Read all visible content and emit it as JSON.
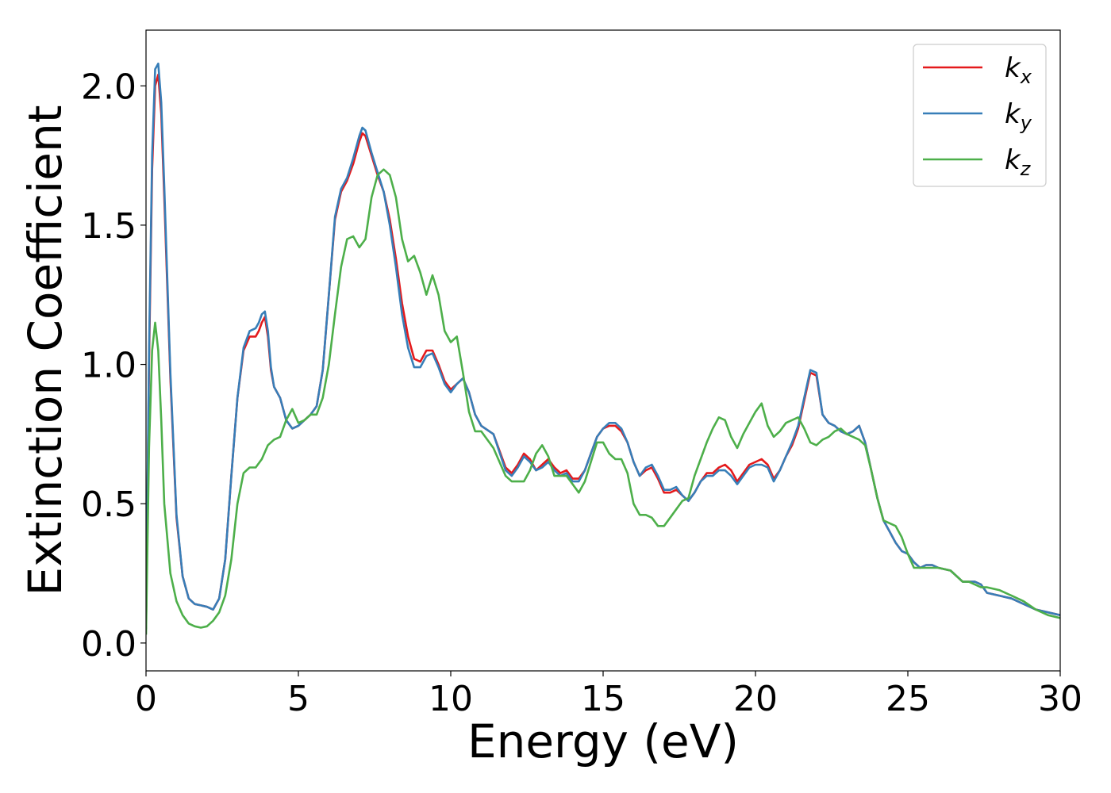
{
  "chart_data": {
    "type": "line",
    "title": "",
    "xlabel": "Energy (eV)",
    "ylabel": "Extinction Coefficient",
    "xlim": [
      0,
      30
    ],
    "ylim": [
      -0.1,
      2.2
    ],
    "xticks": [
      0,
      5,
      10,
      15,
      20,
      25,
      30
    ],
    "xtick_labels": [
      "0",
      "5",
      "10",
      "15",
      "20",
      "25",
      "30"
    ],
    "yticks": [
      0.0,
      0.5,
      1.0,
      1.5,
      2.0
    ],
    "ytick_labels": [
      "0.0",
      "0.5",
      "1.0",
      "1.5",
      "2.0"
    ],
    "grid": false,
    "legend_position": "top-right",
    "series": [
      {
        "name": "k_x",
        "legend_base": "k",
        "legend_sub": "x",
        "color": "#e41a1c",
        "x": [
          0,
          0.1,
          0.2,
          0.3,
          0.4,
          0.5,
          0.6,
          0.8,
          1.0,
          1.2,
          1.4,
          1.6,
          1.8,
          2.0,
          2.2,
          2.4,
          2.6,
          2.8,
          3.0,
          3.2,
          3.4,
          3.6,
          3.7,
          3.8,
          3.9,
          4.0,
          4.1,
          4.2,
          4.4,
          4.6,
          4.8,
          5.0,
          5.2,
          5.4,
          5.6,
          5.8,
          6.0,
          6.2,
          6.4,
          6.6,
          6.8,
          7.0,
          7.1,
          7.2,
          7.4,
          7.6,
          7.8,
          8.0,
          8.2,
          8.4,
          8.6,
          8.8,
          9.0,
          9.2,
          9.4,
          9.6,
          9.8,
          10.0,
          10.2,
          10.4,
          10.6,
          10.8,
          11.0,
          11.4,
          11.8,
          12.0,
          12.2,
          12.4,
          12.6,
          12.8,
          13.0,
          13.2,
          13.4,
          13.6,
          13.8,
          14.0,
          14.2,
          14.4,
          14.6,
          14.8,
          15.0,
          15.2,
          15.4,
          15.6,
          15.8,
          16.0,
          16.2,
          16.4,
          16.6,
          16.8,
          17.0,
          17.2,
          17.4,
          17.6,
          17.8,
          18.0,
          18.2,
          18.4,
          18.6,
          18.8,
          19.0,
          19.2,
          19.4,
          19.6,
          19.8,
          20.0,
          20.2,
          20.4,
          20.6,
          20.8,
          21.0,
          21.2,
          21.4,
          21.6,
          21.8,
          22.0,
          22.2,
          22.4,
          22.6,
          22.8,
          23.0,
          23.2,
          23.4,
          23.6,
          23.8,
          24.0,
          24.2,
          24.4,
          24.6,
          24.8,
          25.0,
          25.2,
          25.4,
          25.6,
          25.8,
          26.0,
          26.4,
          26.8,
          27.0,
          27.2,
          27.4,
          27.6,
          28.0,
          28.4,
          28.8,
          29.2,
          29.6,
          30.0
        ],
        "y": [
          0.05,
          1.0,
          1.7,
          2.0,
          2.04,
          1.9,
          1.6,
          0.95,
          0.45,
          0.24,
          0.16,
          0.14,
          0.135,
          0.13,
          0.12,
          0.16,
          0.3,
          0.6,
          0.88,
          1.05,
          1.1,
          1.1,
          1.12,
          1.15,
          1.17,
          1.1,
          0.98,
          0.92,
          0.88,
          0.8,
          0.77,
          0.78,
          0.8,
          0.82,
          0.85,
          0.98,
          1.25,
          1.52,
          1.62,
          1.66,
          1.72,
          1.8,
          1.83,
          1.82,
          1.75,
          1.68,
          1.62,
          1.52,
          1.38,
          1.22,
          1.1,
          1.02,
          1.01,
          1.05,
          1.05,
          1.0,
          0.94,
          0.91,
          0.93,
          0.95,
          0.9,
          0.82,
          0.78,
          0.75,
          0.63,
          0.61,
          0.64,
          0.68,
          0.66,
          0.62,
          0.64,
          0.66,
          0.63,
          0.61,
          0.62,
          0.59,
          0.59,
          0.62,
          0.68,
          0.74,
          0.77,
          0.78,
          0.78,
          0.76,
          0.72,
          0.65,
          0.6,
          0.62,
          0.63,
          0.59,
          0.54,
          0.54,
          0.55,
          0.53,
          0.51,
          0.54,
          0.58,
          0.61,
          0.61,
          0.63,
          0.64,
          0.62,
          0.58,
          0.61,
          0.64,
          0.65,
          0.66,
          0.64,
          0.59,
          0.62,
          0.67,
          0.71,
          0.77,
          0.87,
          0.97,
          0.96,
          0.82,
          0.79,
          0.78,
          0.76,
          0.75,
          0.76,
          0.78,
          0.72,
          0.62,
          0.52,
          0.44,
          0.4,
          0.36,
          0.33,
          0.32,
          0.29,
          0.27,
          0.28,
          0.28,
          0.27,
          0.26,
          0.22,
          0.22,
          0.22,
          0.21,
          0.18,
          0.17,
          0.16,
          0.14,
          0.12,
          0.11,
          0.1
        ]
      },
      {
        "name": "k_y",
        "legend_base": "k",
        "legend_sub": "y",
        "color": "#377eb8",
        "x": [
          0,
          0.1,
          0.2,
          0.3,
          0.4,
          0.5,
          0.6,
          0.8,
          1.0,
          1.2,
          1.4,
          1.6,
          1.8,
          2.0,
          2.2,
          2.4,
          2.6,
          2.8,
          3.0,
          3.2,
          3.4,
          3.6,
          3.7,
          3.8,
          3.9,
          4.0,
          4.1,
          4.2,
          4.4,
          4.6,
          4.8,
          5.0,
          5.2,
          5.4,
          5.6,
          5.8,
          6.0,
          6.2,
          6.4,
          6.6,
          6.8,
          7.0,
          7.1,
          7.2,
          7.4,
          7.6,
          7.8,
          8.0,
          8.2,
          8.4,
          8.6,
          8.8,
          9.0,
          9.2,
          9.4,
          9.6,
          9.8,
          10.0,
          10.2,
          10.4,
          10.6,
          10.8,
          11.0,
          11.4,
          11.8,
          12.0,
          12.2,
          12.4,
          12.6,
          12.8,
          13.0,
          13.2,
          13.4,
          13.6,
          13.8,
          14.0,
          14.2,
          14.4,
          14.6,
          14.8,
          15.0,
          15.2,
          15.4,
          15.6,
          15.8,
          16.0,
          16.2,
          16.4,
          16.6,
          16.8,
          17.0,
          17.2,
          17.4,
          17.6,
          17.8,
          18.0,
          18.2,
          18.4,
          18.6,
          18.8,
          19.0,
          19.2,
          19.4,
          19.6,
          19.8,
          20.0,
          20.2,
          20.4,
          20.6,
          20.8,
          21.0,
          21.2,
          21.4,
          21.6,
          21.8,
          22.0,
          22.2,
          22.4,
          22.6,
          22.8,
          23.0,
          23.2,
          23.4,
          23.6,
          23.8,
          24.0,
          24.2,
          24.4,
          24.6,
          24.8,
          25.0,
          25.2,
          25.4,
          25.6,
          25.8,
          26.0,
          26.4,
          26.8,
          27.0,
          27.2,
          27.4,
          27.6,
          28.0,
          28.4,
          28.8,
          29.2,
          29.6,
          30.0
        ],
        "y": [
          0.05,
          1.05,
          1.75,
          2.06,
          2.08,
          1.94,
          1.64,
          0.97,
          0.46,
          0.24,
          0.16,
          0.14,
          0.135,
          0.13,
          0.12,
          0.16,
          0.3,
          0.6,
          0.88,
          1.06,
          1.12,
          1.13,
          1.15,
          1.18,
          1.19,
          1.12,
          0.99,
          0.92,
          0.88,
          0.8,
          0.77,
          0.78,
          0.8,
          0.82,
          0.85,
          0.98,
          1.25,
          1.53,
          1.63,
          1.67,
          1.74,
          1.82,
          1.85,
          1.84,
          1.76,
          1.69,
          1.62,
          1.5,
          1.35,
          1.18,
          1.06,
          0.99,
          0.99,
          1.03,
          1.04,
          0.99,
          0.93,
          0.9,
          0.93,
          0.95,
          0.9,
          0.82,
          0.78,
          0.75,
          0.62,
          0.6,
          0.63,
          0.67,
          0.65,
          0.62,
          0.63,
          0.65,
          0.62,
          0.6,
          0.61,
          0.58,
          0.58,
          0.62,
          0.68,
          0.74,
          0.77,
          0.79,
          0.79,
          0.77,
          0.72,
          0.65,
          0.6,
          0.63,
          0.64,
          0.6,
          0.55,
          0.55,
          0.56,
          0.53,
          0.51,
          0.54,
          0.58,
          0.6,
          0.6,
          0.62,
          0.62,
          0.6,
          0.57,
          0.6,
          0.63,
          0.64,
          0.64,
          0.63,
          0.58,
          0.62,
          0.67,
          0.72,
          0.78,
          0.88,
          0.98,
          0.97,
          0.82,
          0.79,
          0.78,
          0.76,
          0.75,
          0.76,
          0.78,
          0.72,
          0.62,
          0.52,
          0.44,
          0.4,
          0.36,
          0.33,
          0.32,
          0.29,
          0.27,
          0.28,
          0.28,
          0.27,
          0.26,
          0.22,
          0.22,
          0.22,
          0.21,
          0.18,
          0.17,
          0.16,
          0.14,
          0.12,
          0.11,
          0.1
        ]
      },
      {
        "name": "k_z",
        "legend_base": "k",
        "legend_sub": "z",
        "color": "#4daf4a",
        "x": [
          0,
          0.1,
          0.2,
          0.3,
          0.4,
          0.5,
          0.6,
          0.8,
          1.0,
          1.2,
          1.4,
          1.6,
          1.8,
          2.0,
          2.2,
          2.4,
          2.6,
          2.8,
          3.0,
          3.2,
          3.4,
          3.6,
          3.8,
          4.0,
          4.2,
          4.4,
          4.6,
          4.8,
          5.0,
          5.2,
          5.4,
          5.6,
          5.8,
          6.0,
          6.2,
          6.4,
          6.6,
          6.8,
          7.0,
          7.2,
          7.4,
          7.6,
          7.8,
          8.0,
          8.2,
          8.4,
          8.6,
          8.8,
          9.0,
          9.2,
          9.4,
          9.6,
          9.8,
          10.0,
          10.2,
          10.4,
          10.6,
          10.8,
          11.0,
          11.4,
          11.8,
          12.0,
          12.2,
          12.4,
          12.6,
          12.8,
          13.0,
          13.2,
          13.4,
          13.6,
          13.8,
          14.0,
          14.2,
          14.4,
          14.6,
          14.8,
          15.0,
          15.2,
          15.4,
          15.6,
          15.8,
          16.0,
          16.2,
          16.4,
          16.6,
          16.8,
          17.0,
          17.2,
          17.4,
          17.6,
          17.8,
          18.0,
          18.2,
          18.4,
          18.6,
          18.8,
          19.0,
          19.2,
          19.4,
          19.6,
          19.8,
          20.0,
          20.2,
          20.4,
          20.6,
          20.8,
          21.0,
          21.2,
          21.4,
          21.6,
          21.8,
          22.0,
          22.2,
          22.4,
          22.6,
          22.8,
          23.0,
          23.2,
          23.4,
          23.6,
          23.8,
          24.0,
          24.2,
          24.4,
          24.6,
          24.8,
          25.0,
          25.2,
          25.4,
          25.6,
          25.8,
          26.0,
          26.4,
          26.8,
          27.0,
          27.2,
          27.4,
          27.6,
          28.0,
          28.4,
          28.8,
          29.2,
          29.6,
          30.0
        ],
        "y": [
          0.03,
          0.7,
          1.05,
          1.15,
          1.05,
          0.8,
          0.5,
          0.25,
          0.15,
          0.1,
          0.07,
          0.06,
          0.055,
          0.06,
          0.08,
          0.11,
          0.17,
          0.3,
          0.5,
          0.61,
          0.63,
          0.63,
          0.66,
          0.71,
          0.73,
          0.74,
          0.8,
          0.84,
          0.79,
          0.8,
          0.82,
          0.82,
          0.88,
          1.0,
          1.18,
          1.35,
          1.45,
          1.46,
          1.42,
          1.45,
          1.6,
          1.68,
          1.7,
          1.68,
          1.6,
          1.45,
          1.37,
          1.39,
          1.33,
          1.25,
          1.32,
          1.25,
          1.12,
          1.08,
          1.1,
          0.97,
          0.83,
          0.76,
          0.76,
          0.7,
          0.6,
          0.58,
          0.58,
          0.58,
          0.62,
          0.68,
          0.71,
          0.67,
          0.6,
          0.6,
          0.6,
          0.57,
          0.54,
          0.58,
          0.65,
          0.72,
          0.72,
          0.68,
          0.66,
          0.66,
          0.61,
          0.5,
          0.46,
          0.46,
          0.45,
          0.42,
          0.42,
          0.45,
          0.48,
          0.51,
          0.52,
          0.6,
          0.66,
          0.72,
          0.77,
          0.81,
          0.8,
          0.74,
          0.7,
          0.75,
          0.79,
          0.83,
          0.86,
          0.78,
          0.74,
          0.76,
          0.79,
          0.8,
          0.81,
          0.77,
          0.72,
          0.71,
          0.73,
          0.74,
          0.76,
          0.77,
          0.75,
          0.74,
          0.73,
          0.71,
          0.62,
          0.52,
          0.44,
          0.43,
          0.42,
          0.38,
          0.32,
          0.27,
          0.27,
          0.27,
          0.27,
          0.27,
          0.26,
          0.22,
          0.22,
          0.21,
          0.2,
          0.2,
          0.19,
          0.17,
          0.15,
          0.12,
          0.1,
          0.09
        ]
      }
    ]
  }
}
